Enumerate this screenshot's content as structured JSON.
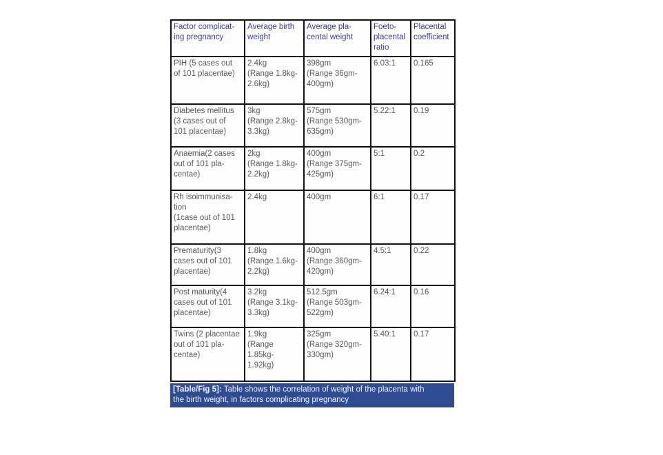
{
  "table": {
    "headers": [
      "Factor complicat-\ning pregnancy",
      "Average birth\nweight",
      "Average pla-\ncental weight",
      "Foeto-\nplacental\nratio",
      "Placental\ncoefficient"
    ],
    "rows": [
      {
        "cells": [
          "PIH (5 cases out\nof 101 placentae)",
          "2.4kg\n(Range 1.8kg-\n2.6kg)",
          "398gm\n(Range 36gm-\n400gm)",
          "6.03:1",
          "0.165"
        ]
      },
      {
        "cells": [
          "Diabetes mellitus\n(3 cases out of\n101 placentae)",
          "3kg\n(Range 2.8kg-\n3.3kg)",
          "575gm\n(Range 530gm-\n635gm)",
          "5.22:1",
          "0.19"
        ]
      },
      {
        "cells": [
          "Anaemia(2 cases\nout of 101 pla-\ncentae)",
          "2kg\n(Range 1.8kg-\n2.2kg)",
          "400gm\n(Range 375gm-\n425gm)",
          "5:1",
          "0.2"
        ]
      },
      {
        "cells": [
          "Rh isoimmunisa-\ntion\n(1case out of 101\nplacentae)",
          "2.4kg",
          "400gm",
          "6:1",
          "0.17"
        ]
      },
      {
        "cells": [
          "Prematurity(3\ncases out of 101\nplacentae)",
          "1.8kg\n(Range 1.6kg-\n2.2kg)",
          "400gm\n(Range 360gm-\n420gm)",
          "4.5:1",
          "0.22"
        ]
      },
      {
        "cells": [
          "Post maturity(4\ncases out of 101\nplacentae)",
          "3.2kg\n(Range 3.1kg-\n3.3kg)",
          "512.5gm\n(Range 503gm-\n522gm)",
          "6.24:1",
          "0.16"
        ]
      },
      {
        "cells": [
          "Twins (2 placentae\nout of 101 pla-\ncentae)",
          "1.9kg\n(Range\n1.85kg-\n1.92kg)",
          "325gm\n(Range 320gm-\n330gm)",
          "5.40:1",
          "0.17"
        ]
      }
    ]
  },
  "caption": {
    "label": "[Table/Fig 5]:",
    "text": " Table shows the correlation of weight of the placenta with\nthe birth weight, in factors complicating pregnancy"
  },
  "colors": {
    "header_text": "#3c3c8c",
    "body_text": "#58585a",
    "border": "#111111",
    "caption_background": "#2e4b94",
    "caption_text": "#f2f3f8"
  }
}
